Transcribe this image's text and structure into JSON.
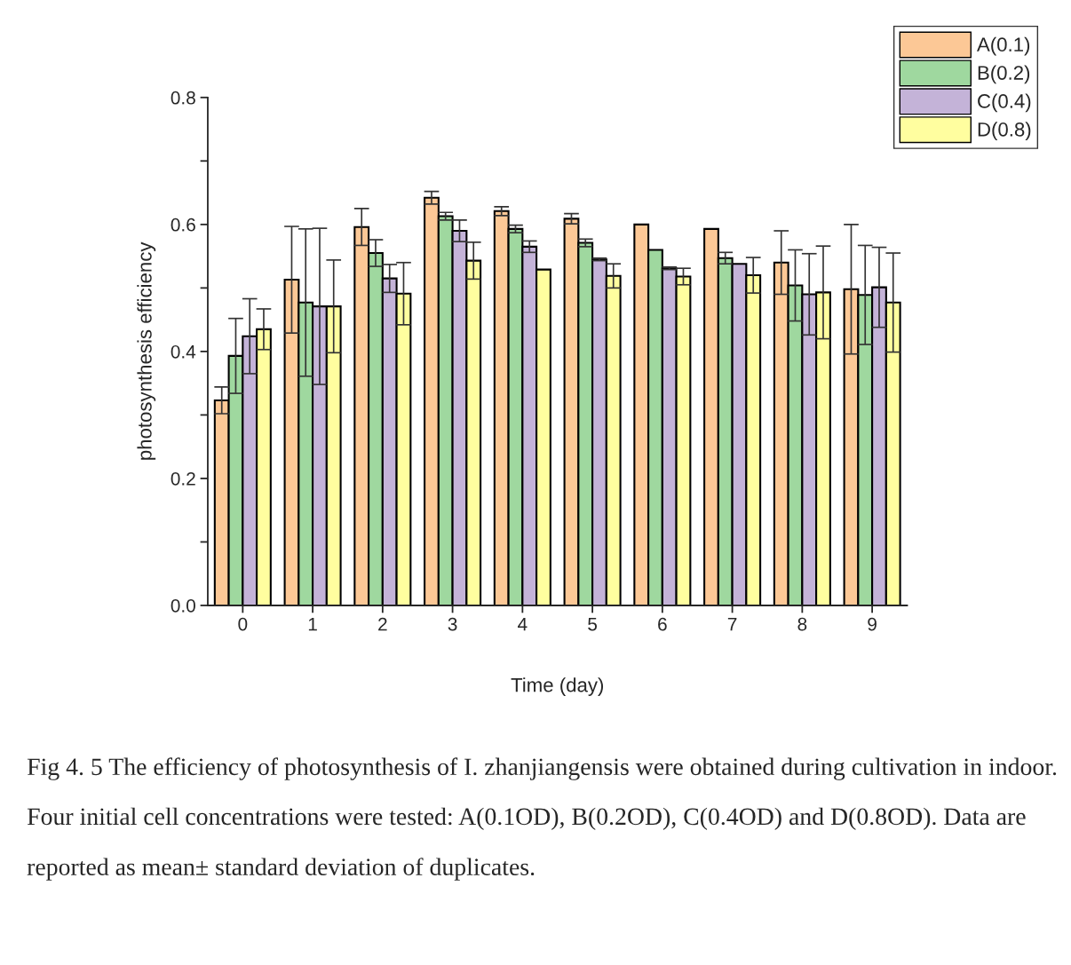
{
  "chart_data": {
    "type": "bar",
    "xlabel": "Time (day)",
    "ylabel": "photosynthesis efficiency",
    "categories": [
      "0",
      "1",
      "2",
      "3",
      "4",
      "5",
      "6",
      "7",
      "8",
      "9"
    ],
    "series": [
      {
        "name": "A(0.1)",
        "color": "#fcc896",
        "values": [
          0.323,
          0.513,
          0.596,
          0.642,
          0.621,
          0.609,
          0.6,
          0.593,
          0.54,
          0.498
        ],
        "errors": [
          0.021,
          0.084,
          0.029,
          0.01,
          0.007,
          0.008,
          null,
          null,
          0.05,
          0.102
        ]
      },
      {
        "name": "B(0.2)",
        "color": "#9fd89f",
        "values": [
          0.393,
          0.477,
          0.555,
          0.613,
          0.593,
          0.571,
          0.56,
          0.547,
          0.504,
          0.489
        ],
        "errors": [
          0.059,
          0.116,
          0.021,
          0.006,
          0.006,
          0.006,
          null,
          0.009,
          0.056,
          0.078
        ]
      },
      {
        "name": "C(0.4)",
        "color": "#c4b3d8",
        "values": [
          0.424,
          0.471,
          0.515,
          0.59,
          0.565,
          0.545,
          0.531,
          0.538,
          0.49,
          0.501
        ],
        "errors": [
          0.059,
          0.123,
          0.022,
          0.017,
          0.009,
          0.002,
          0.002,
          null,
          0.064,
          0.063
        ]
      },
      {
        "name": "D(0.8)",
        "color": "#fffe9f",
        "values": [
          0.435,
          0.471,
          0.491,
          0.543,
          0.529,
          0.519,
          0.518,
          0.52,
          0.493,
          0.477
        ],
        "errors": [
          0.032,
          0.073,
          0.049,
          0.029,
          null,
          0.019,
          0.013,
          0.028,
          0.073,
          0.078
        ]
      }
    ],
    "ylim": [
      0,
      0.8
    ],
    "yticks": [
      {
        "value": 0,
        "label": "0.0"
      },
      {
        "value": 0.1,
        "label": null
      },
      {
        "value": 0.2,
        "label": "0.2"
      },
      {
        "value": 0.3,
        "label": null
      },
      {
        "value": 0.4,
        "label": "0.4"
      },
      {
        "value": 0.5,
        "label": null
      },
      {
        "value": 0.6,
        "label": "0.6"
      },
      {
        "value": 0.7,
        "label": null
      },
      {
        "value": 0.8,
        "label": "0.8"
      }
    ],
    "legend": "top right",
    "grid": false,
    "annotations": [
      "Fig 4. 5 The efficiency of photosynthesis of I. zhanjiangensis were obtained during cultivation in indoor. Four initial cell concentrations were tested: A(0.1OD), B(0.2OD), C(0.4OD) and D(0.8OD). Data are reported as mean± standard deviation of duplicates."
    ]
  }
}
